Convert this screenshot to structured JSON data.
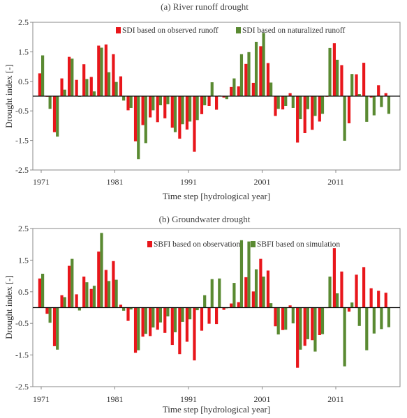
{
  "chart_data": [
    {
      "type": "bar",
      "title": "(a) River runoff drought",
      "xlabel": "Time step [hydrological year]",
      "ylabel": "Drought index  [-]",
      "ylim": [
        -2.5,
        2.5
      ],
      "yticks": [
        "2.5",
        "1.5",
        "0.5",
        "-0.5",
        "-1.5",
        "-2.5"
      ],
      "xtick_labels": [
        "1971",
        "1981",
        "1991",
        "2001",
        "2011"
      ],
      "legend_position": "top-right",
      "years": [
        1971,
        1972,
        1973,
        1974,
        1975,
        1976,
        1977,
        1978,
        1979,
        1980,
        1981,
        1982,
        1983,
        1984,
        1985,
        1986,
        1987,
        1988,
        1989,
        1990,
        1991,
        1992,
        1993,
        1994,
        1995,
        1996,
        1997,
        1998,
        1999,
        2000,
        2001,
        2002,
        2003,
        2004,
        2005,
        2006,
        2007,
        2008,
        2009,
        2010,
        2011,
        2012,
        2013,
        2014,
        2015,
        2016,
        2017,
        2018
      ],
      "series": [
        {
          "name": "SDI based on observed runoff",
          "color": "#e8161b",
          "values": [
            0.77,
            -0.02,
            -1.22,
            0.6,
            1.33,
            0.55,
            1.08,
            0.65,
            1.71,
            1.75,
            1.42,
            0.67,
            -0.48,
            -1.53,
            -0.98,
            -0.72,
            -0.88,
            -0.75,
            -1.07,
            -1.44,
            -1.13,
            -1.88,
            -0.61,
            -0.33,
            -0.46,
            -0.05,
            0.31,
            0.33,
            1.09,
            0.45,
            1.69,
            1.12,
            -0.67,
            -0.45,
            0.1,
            -1.57,
            -1.25,
            -1.14,
            -0.86,
            -0.02,
            1.79,
            1.05,
            -0.92,
            0.74,
            1.13,
            -0.05,
            0.37,
            0.1
          ]
        },
        {
          "name": "SDI based on naturalized runoff",
          "color": "#5a8a32",
          "values": [
            1.38,
            -0.43,
            -1.37,
            0.22,
            1.27,
            -0.02,
            0.58,
            0.16,
            1.64,
            0.81,
            0.48,
            -0.15,
            -0.4,
            -2.13,
            -1.59,
            -0.48,
            -0.31,
            -0.27,
            -1.22,
            -0.95,
            -0.86,
            -0.81,
            -0.31,
            0.47,
            0.02,
            -0.1,
            0.6,
            1.42,
            1.49,
            1.84,
            2.14,
            0.46,
            -0.43,
            -0.33,
            -0.4,
            -0.78,
            -0.44,
            -0.67,
            -0.6,
            1.63,
            1.23,
            -1.51,
            0.75,
            0.07,
            -0.87,
            -0.65,
            -0.37,
            -0.6
          ]
        }
      ]
    },
    {
      "type": "bar",
      "title": "(b) Groundwater drought",
      "xlabel": "Time step [hydrological year]",
      "ylabel": "Drought index  [-]",
      "ylim": [
        -2.5,
        2.5
      ],
      "yticks": [
        "2.5",
        "1.5",
        "0.5",
        "-0.5",
        "-1.5",
        "-2.5"
      ],
      "xtick_labels": [
        "1971",
        "1981",
        "1991",
        "2001",
        "2011"
      ],
      "legend_position": "top-right",
      "years": [
        1971,
        1972,
        1973,
        1974,
        1975,
        1976,
        1977,
        1978,
        1979,
        1980,
        1981,
        1982,
        1983,
        1984,
        1985,
        1986,
        1987,
        1988,
        1989,
        1990,
        1991,
        1992,
        1993,
        1994,
        1995,
        1996,
        1997,
        1998,
        1999,
        2000,
        2001,
        2002,
        2003,
        2004,
        2005,
        2006,
        2007,
        2008,
        2009,
        2010,
        2011,
        2012,
        2013,
        2014,
        2015,
        2016,
        2017,
        2018
      ],
      "series": [
        {
          "name": "SBFI based on observation",
          "color": "#e8161b",
          "values": [
            0.92,
            -0.2,
            -1.22,
            0.39,
            1.32,
            0.42,
            0.98,
            0.59,
            1.77,
            1.19,
            1.47,
            0.09,
            -0.42,
            -1.43,
            -0.92,
            -0.9,
            -0.7,
            -0.8,
            -1.18,
            -1.47,
            -1.08,
            -1.67,
            -0.73,
            -0.51,
            -0.52,
            -0.07,
            0.13,
            0.17,
            0.96,
            0.51,
            1.54,
            1.17,
            -0.59,
            -0.71,
            0.07,
            -1.9,
            -1.21,
            -1.03,
            -0.87,
            0.0,
            1.88,
            1.14,
            -0.13,
            1.04,
            1.28,
            0.61,
            0.53,
            0.47
          ]
        },
        {
          "name": "SBFI based on simulation",
          "color": "#5a8a32",
          "values": [
            1.07,
            -0.48,
            -1.33,
            0.33,
            1.54,
            -0.09,
            0.8,
            0.69,
            2.36,
            0.84,
            0.88,
            -0.1,
            -0.06,
            -1.35,
            -0.83,
            -0.63,
            -0.47,
            -0.28,
            -0.78,
            -0.45,
            -0.37,
            -0.08,
            0.39,
            0.9,
            0.92,
            -0.02,
            0.78,
            2.13,
            2.09,
            1.21,
            0.98,
            0.14,
            -0.85,
            -0.7,
            -0.5,
            -1.33,
            -1.0,
            -1.39,
            -0.84,
            0.98,
            0.45,
            -1.86,
            0.16,
            -0.58,
            -1.35,
            -0.82,
            -0.68,
            -0.62
          ]
        }
      ]
    }
  ]
}
